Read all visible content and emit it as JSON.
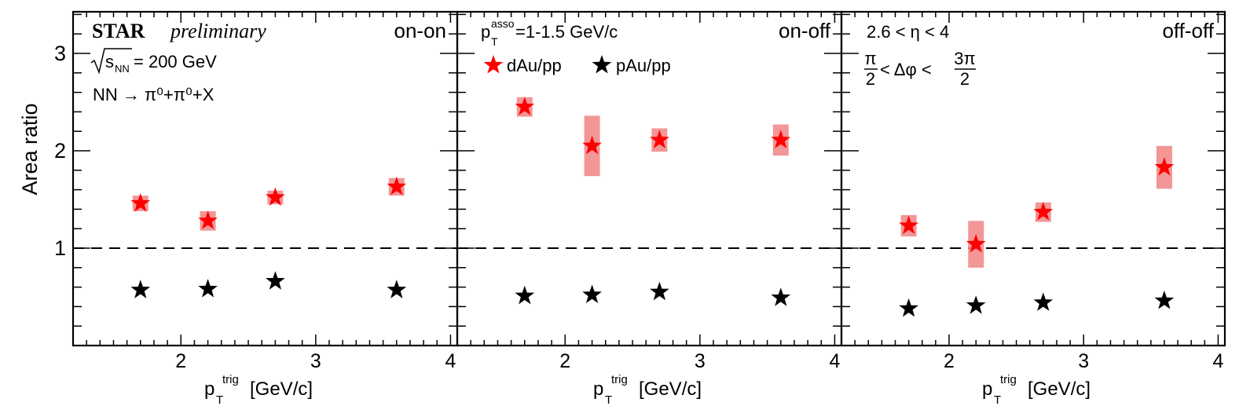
{
  "figure": {
    "experiment": "STAR",
    "status": "preliminary",
    "sqrt_s": "= 200 GeV",
    "reaction": "NN → π⁰+π⁰+X",
    "p_asso": "=1-1.5 GeV/c",
    "eta_range": "2.6 < η < 4",
    "dphi_range": "< Δφ <"
  },
  "chart_data": [
    {
      "type": "scatter",
      "panel_label": "on-on",
      "xlabel": "p_T^trig [GeV/c]",
      "ylabel": "Area ratio",
      "xlim": [
        1.2,
        4.05
      ],
      "ylim": [
        0.0,
        3.4
      ],
      "xticks": [
        2,
        3,
        4
      ],
      "yticks": [
        1,
        2,
        3
      ],
      "reference_line": 1,
      "series": [
        {
          "name": "dAu/pp",
          "color": "#ff0000",
          "x": [
            1.7,
            2.2,
            2.7,
            3.6
          ],
          "y": [
            1.46,
            1.28,
            1.52,
            1.63
          ],
          "sys": [
            0.08,
            0.1,
            0.07,
            0.09
          ]
        },
        {
          "name": "pAu/pp",
          "color": "#000000",
          "x": [
            1.7,
            2.2,
            2.7,
            3.6
          ],
          "y": [
            0.57,
            0.58,
            0.66,
            0.57
          ]
        }
      ]
    },
    {
      "type": "scatter",
      "panel_label": "on-off",
      "xlabel": "p_T^trig [GeV/c]",
      "xlim": [
        1.2,
        4.05
      ],
      "ylim": [
        0.0,
        3.4
      ],
      "xticks": [
        2,
        3,
        4
      ],
      "yticks": [
        1,
        2,
        3
      ],
      "reference_line": 1,
      "series": [
        {
          "name": "dAu/pp",
          "color": "#ff0000",
          "x": [
            1.7,
            2.2,
            2.7,
            3.6
          ],
          "y": [
            2.45,
            2.05,
            2.11,
            2.11
          ],
          "sys": [
            0.1,
            0.31,
            0.12,
            0.16
          ]
        },
        {
          "name": "pAu/pp",
          "color": "#000000",
          "x": [
            1.7,
            2.2,
            2.7,
            3.6
          ],
          "y": [
            0.51,
            0.52,
            0.55,
            0.49
          ]
        }
      ]
    },
    {
      "type": "scatter",
      "panel_label": "off-off",
      "xlabel": "p_T^trig [GeV/c]",
      "xlim": [
        1.2,
        4.05
      ],
      "ylim": [
        0.0,
        3.4
      ],
      "xticks": [
        2,
        3,
        4
      ],
      "yticks": [
        1,
        2,
        3
      ],
      "reference_line": 1,
      "series": [
        {
          "name": "dAu/pp",
          "color": "#ff0000",
          "x": [
            1.7,
            2.2,
            2.7,
            3.6
          ],
          "y": [
            1.23,
            1.04,
            1.37,
            1.83
          ],
          "sys": [
            0.11,
            0.24,
            0.1,
            0.22
          ]
        },
        {
          "name": "pAu/pp",
          "color": "#000000",
          "x": [
            1.7,
            2.2,
            2.7,
            3.6
          ],
          "y": [
            0.38,
            0.41,
            0.44,
            0.46
          ]
        }
      ]
    }
  ]
}
